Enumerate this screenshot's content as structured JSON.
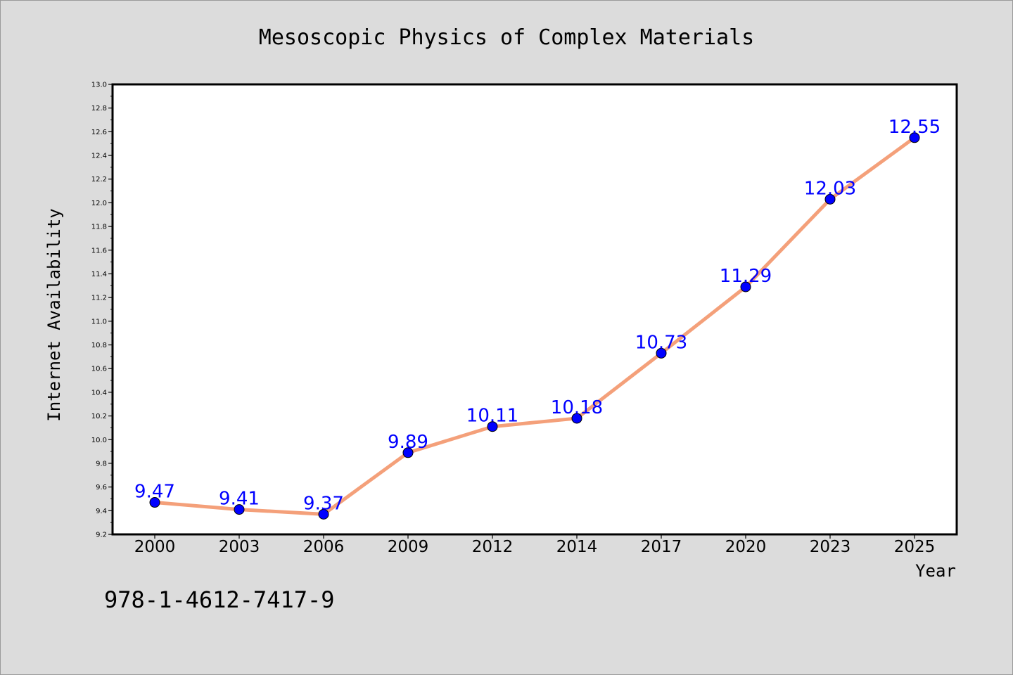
{
  "chart_data": {
    "type": "line",
    "title": "Mesoscopic Physics of Complex Materials",
    "xlabel": "Year",
    "ylabel": "Internet Availability",
    "categories": [
      "2000",
      "2003",
      "2006",
      "2009",
      "2012",
      "2014",
      "2017",
      "2020",
      "2023",
      "2025"
    ],
    "series": [
      {
        "values": [
          9.47,
          9.41,
          9.37,
          9.89,
          10.11,
          10.18,
          10.73,
          11.29,
          12.03,
          12.55
        ]
      }
    ],
    "data_labels": [
      "9.47",
      "9.41",
      "9.37",
      "9.89",
      "10.11",
      "10.18",
      "10.73",
      "11.29",
      "12.03",
      "12.55"
    ],
    "ylim": [
      9.2,
      13.0
    ],
    "yticks": [
      "9.2",
      "9.4",
      "9.6",
      "9.8",
      "10.0",
      "10.2",
      "10.4",
      "10.6",
      "10.8",
      "11.0",
      "11.2",
      "11.4",
      "11.6",
      "11.8",
      "12.0",
      "12.2",
      "12.4",
      "12.6",
      "12.8",
      "13.0"
    ],
    "grid": false,
    "colors": {
      "line": "#f4a07a",
      "marker": "#0000ff",
      "label": "#0000ff",
      "axes": "#000000",
      "background": "#dcdcdc",
      "plot_bg": "#ffffff"
    }
  },
  "footer": {
    "isbn": "978-1-4612-7417-9"
  }
}
